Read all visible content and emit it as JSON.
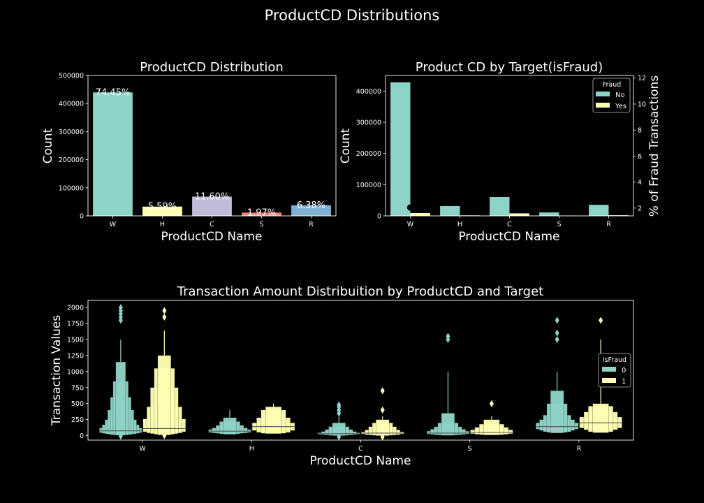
{
  "suptitle": "ProductCD Distributions",
  "chart_data": [
    {
      "type": "bar",
      "title": "ProductCD Distribution",
      "xlabel": "ProductCD Name",
      "ylabel": "Count",
      "categories": [
        "W",
        "H",
        "C",
        "S",
        "R"
      ],
      "values": [
        439670,
        33024,
        68519,
        11628,
        37699
      ],
      "data_labels": [
        "74.45%",
        "5.59%",
        "11.60%",
        "1.97%",
        "6.38%"
      ],
      "ylim": [
        0,
        500000
      ],
      "yticks": [
        0,
        100000,
        200000,
        300000,
        400000,
        500000
      ],
      "colors": [
        "#8dd3c7",
        "#feffb3",
        "#bfbbd9",
        "#fa8174",
        "#81b1d2"
      ]
    },
    {
      "type": "bar",
      "title": "Product CD by Target(isFraud)",
      "xlabel": "ProductCD Name",
      "ylabel": "Count",
      "ylabel_right": "% of Fraud Transactions",
      "categories": [
        "W",
        "H",
        "C",
        "S",
        "R"
      ],
      "series": [
        {
          "name": "No",
          "values": [
            428000,
            31500,
            60500,
            11000,
            35500
          ],
          "color": "#8dd3c7"
        },
        {
          "name": "Yes",
          "values": [
            8950,
            1570,
            8000,
            690,
            1990
          ],
          "color": "#feffb3"
        }
      ],
      "secondary_series": {
        "values": [
          2.04
        ],
        "color": "#000000"
      },
      "ylim": [
        0,
        450000
      ],
      "yticks": [
        0,
        100000,
        200000,
        300000,
        400000
      ],
      "ylim_right": [
        1.4,
        12.2
      ],
      "yticks_right": [
        2,
        4,
        6,
        8,
        10,
        12
      ],
      "legend": {
        "title": "Fraud",
        "position": "top-right"
      }
    },
    {
      "type": "boxen",
      "title": "Transaction Amount Distribuition by ProductCD and Target",
      "xlabel": "ProductCD Name",
      "ylabel": "Transaction Values",
      "categories": [
        "W",
        "H",
        "C",
        "S",
        "R"
      ],
      "ylim": [
        -70,
        2110
      ],
      "yticks": [
        0,
        250,
        500,
        750,
        1000,
        1250,
        1500,
        1750,
        2000
      ],
      "legend": {
        "title": "isFraud",
        "position": "center-right"
      },
      "series": [
        {
          "name": "0",
          "color": "#8dd3c7",
          "groups": [
            {
              "median": 75,
              "boxes": [
                [
                  45,
                  120
                ],
                [
                  35,
                  170
                ],
                [
                  28,
                  250
                ],
                [
                  22,
                  400
                ],
                [
                  15,
                  600
                ],
                [
                  10,
                  850
                ],
                [
                  5,
                  1150
                ]
              ],
              "whisker": 1500,
              "outliers": [
                -10,
                1800,
                1850,
                1900,
                1950,
                2000
              ]
            },
            {
              "median": 70,
              "boxes": [
                [
                  50,
                  95
                ],
                [
                  40,
                  120
                ],
                [
                  35,
                  160
                ],
                [
                  28,
                  220
                ],
                [
                  20,
                  280
                ]
              ],
              "whisker": 400,
              "outliers": []
            },
            {
              "median": 30,
              "boxes": [
                [
                  20,
                  45
                ],
                [
                  15,
                  65
                ],
                [
                  10,
                  95
                ],
                [
                  5,
                  140
                ],
                [
                  0,
                  200
                ]
              ],
              "whisker": 300,
              "outliers": [
                -20,
                350,
                400,
                450,
                480
              ]
            },
            {
              "median": 40,
              "boxes": [
                [
                  25,
                  70
                ],
                [
                  18,
                  100
                ],
                [
                  12,
                  140
                ],
                [
                  8,
                  200
                ],
                [
                  4,
                  350
                ]
              ],
              "whisker": 1000,
              "outliers": [
                1500,
                1550
              ]
            },
            {
              "median": 140,
              "boxes": [
                [
                  100,
                  200
                ],
                [
                  80,
                  250
                ],
                [
                  60,
                  320
                ],
                [
                  50,
                  500
                ],
                [
                  40,
                  700
                ]
              ],
              "whisker": 1000,
              "outliers": [
                1500,
                1600,
                1800
              ]
            }
          ]
        },
        {
          "name": "1",
          "color": "#feffb3",
          "groups": [
            {
              "median": 110,
              "boxes": [
                [
                  60,
                  260
                ],
                [
                  40,
                  450
                ],
                [
                  30,
                  750
                ],
                [
                  20,
                  1050
                ],
                [
                  10,
                  1250
                ]
              ],
              "whisker": 1640,
              "outliers": [
                0,
                1850,
                1950
              ]
            },
            {
              "median": 140,
              "boxes": [
                [
                  80,
                  200
                ],
                [
                  50,
                  280
                ],
                [
                  35,
                  400
                ],
                [
                  30,
                  450
                ]
              ],
              "whisker": 500,
              "outliers": []
            },
            {
              "median": 40,
              "boxes": [
                [
                  25,
                  60
                ],
                [
                  15,
                  90
                ],
                [
                  10,
                  140
                ],
                [
                  5,
                  200
                ],
                [
                  0,
                  250
                ]
              ],
              "whisker": 300,
              "outliers": [
                -20,
                400,
                700
              ]
            },
            {
              "median": 50,
              "boxes": [
                [
                  30,
                  90
                ],
                [
                  20,
                  130
                ],
                [
                  15,
                  180
                ],
                [
                  10,
                  250
                ]
              ],
              "whisker": 300,
              "outliers": [
                500
              ]
            },
            {
              "median": 200,
              "boxes": [
                [
                  120,
                  290
                ],
                [
                  90,
                  370
                ],
                [
                  60,
                  460
                ],
                [
                  45,
                  500
                ]
              ],
              "whisker": 1500,
              "outliers": [
                1800
              ]
            }
          ]
        }
      ]
    }
  ]
}
